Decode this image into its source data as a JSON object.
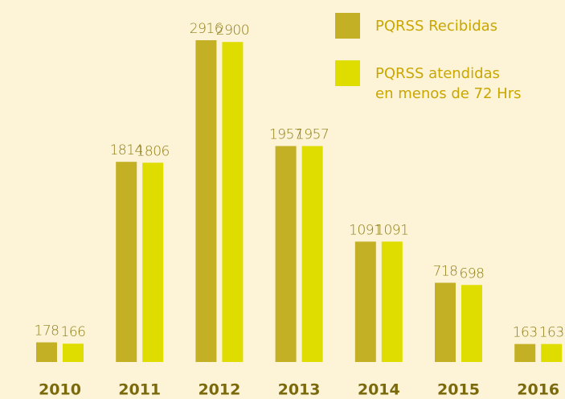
{
  "chart_data": {
    "type": "bar",
    "categories": [
      "2010",
      "2011",
      "2012",
      "2013",
      "2014",
      "2015",
      "2016"
    ],
    "series": [
      {
        "name": "PQRSS Recibidas",
        "color": "#c4b024",
        "values": [
          178,
          1814,
          2916,
          1957,
          1091,
          718,
          163
        ]
      },
      {
        "name": "PQRSS atendidas\nen menos de 72 Hrs",
        "color": "#dfdc00",
        "values": [
          166,
          1806,
          2900,
          1957,
          1091,
          698,
          163
        ]
      }
    ],
    "legend": "top-right"
  }
}
